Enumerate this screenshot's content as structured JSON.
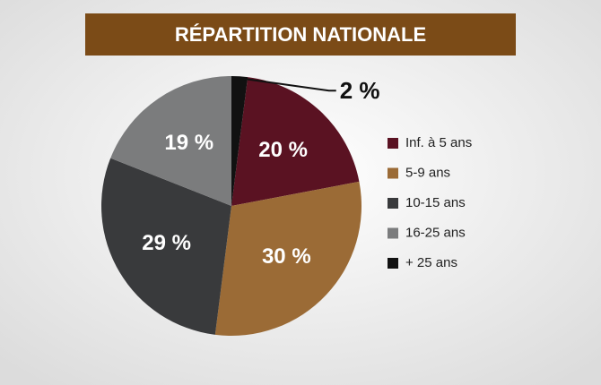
{
  "chart_data": {
    "type": "pie",
    "title": "RÉPARTITION NATIONALE",
    "categories": [
      "Inf. à 5 ans",
      "5-9 ans",
      "10-15 ans",
      "16-25 ans",
      "+ 25 ans"
    ],
    "values": [
      20,
      30,
      29,
      19,
      2
    ],
    "value_labels": [
      "20 %",
      "30 %",
      "29 %",
      "19 %",
      "2 %"
    ],
    "colors": [
      "#5a1222",
      "#9b6b36",
      "#393a3c",
      "#7b7c7d",
      "#111111"
    ],
    "legend": "right"
  }
}
